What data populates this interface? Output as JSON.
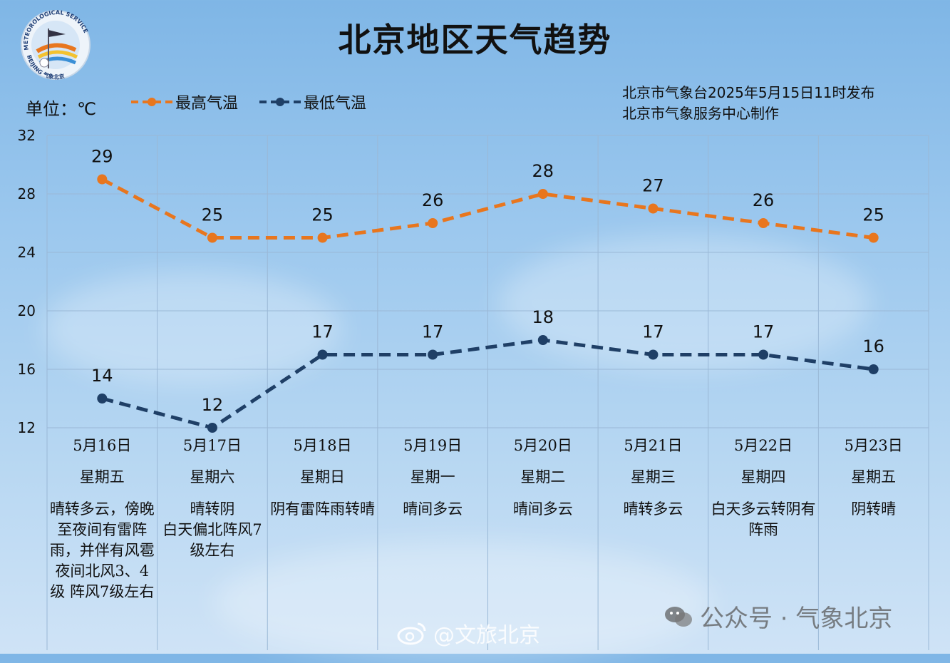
{
  "header": {
    "title": "北京地区天气趋势",
    "unit": "单位：℃",
    "issuer_line1": "北京市气象台2025年5月15日11时发布",
    "issuer_line2": "北京市气象服务中心制作"
  },
  "logo": {
    "text_top": "METEOROLOGICAL SERVICE",
    "text_bottom": "BEIJING 气象北京"
  },
  "colors": {
    "high": "#e8761e",
    "low": "#1f3f66",
    "grid": "#9ab8d6"
  },
  "chart_data": {
    "type": "line",
    "categories": [
      "5月16日",
      "5月17日",
      "5月18日",
      "5月19日",
      "5月20日",
      "5月21日",
      "5月22日",
      "5月23日"
    ],
    "ylim": [
      12,
      32
    ],
    "yticks": [
      12,
      16,
      20,
      24,
      28,
      32
    ],
    "grid": true,
    "legend_position": "top-left",
    "series": [
      {
        "name": "最高气温",
        "values": [
          29,
          25,
          25,
          26,
          28,
          27,
          26,
          25
        ]
      },
      {
        "name": "最低气温",
        "values": [
          14,
          12,
          17,
          17,
          18,
          17,
          17,
          16
        ]
      }
    ]
  },
  "days": [
    {
      "date": "5月16日",
      "weekday": "星期五",
      "desc": "晴转多云，傍晚至夜间有雷阵雨，并伴有风雹",
      "desc2": "夜间北风3、4级 阵风7级左右"
    },
    {
      "date": "5月17日",
      "weekday": "星期六",
      "desc": "晴转阴",
      "desc2": "白天偏北阵风7级左右"
    },
    {
      "date": "5月18日",
      "weekday": "星期日",
      "desc": "阴有雷阵雨转晴",
      "desc2": ""
    },
    {
      "date": "5月19日",
      "weekday": "星期一",
      "desc": "晴间多云",
      "desc2": ""
    },
    {
      "date": "5月20日",
      "weekday": "星期二",
      "desc": "晴间多云",
      "desc2": ""
    },
    {
      "date": "5月21日",
      "weekday": "星期三",
      "desc": "晴转多云",
      "desc2": ""
    },
    {
      "date": "5月22日",
      "weekday": "星期四",
      "desc": "白天多云转阴有阵雨",
      "desc2": ""
    },
    {
      "date": "5月23日",
      "weekday": "星期五",
      "desc": "阴转晴",
      "desc2": ""
    }
  ],
  "watermarks": {
    "wechat": "公众号 · 气象北京",
    "weibo": "@文旅北京"
  }
}
